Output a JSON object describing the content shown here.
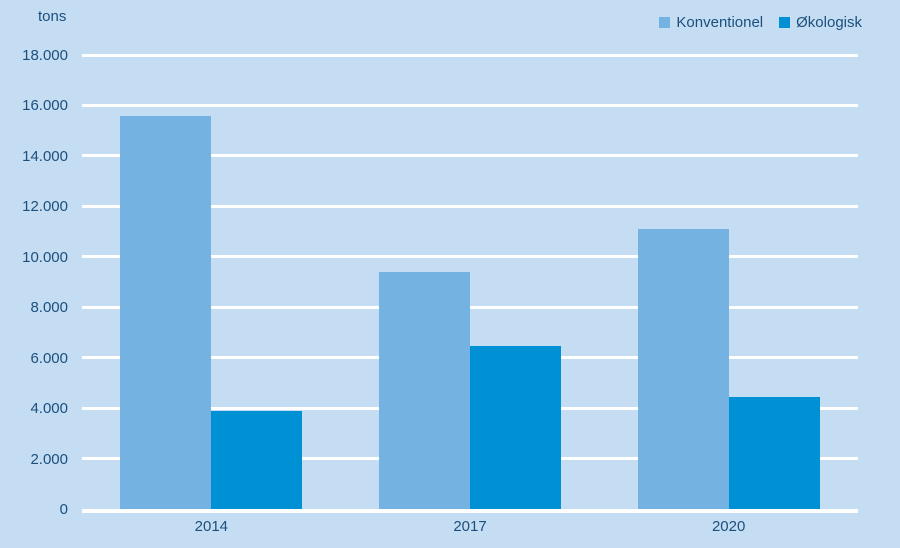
{
  "chart_data": {
    "type": "bar",
    "title": "",
    "unit_label": "tons",
    "xlabel": "",
    "ylabel": "tons",
    "categories": [
      "2014",
      "2017",
      "2020"
    ],
    "series": [
      {
        "name": "Konventionel",
        "color": "#74b2e2",
        "values": [
          15600,
          9400,
          11100
        ]
      },
      {
        "name": "Økologisk",
        "color": "#0090d4",
        "values": [
          3900,
          6450,
          4450
        ]
      }
    ],
    "yticks": [
      {
        "v": 0,
        "label": "0"
      },
      {
        "v": 2000,
        "label": "2.000"
      },
      {
        "v": 4000,
        "label": "4.000"
      },
      {
        "v": 6000,
        "label": "6.000"
      },
      {
        "v": 8000,
        "label": "8.000"
      },
      {
        "v": 10000,
        "label": "10.000"
      },
      {
        "v": 12000,
        "label": "12.000"
      },
      {
        "v": 14000,
        "label": "14.000"
      },
      {
        "v": 16000,
        "label": "16.000"
      },
      {
        "v": 18000,
        "label": "18.000"
      }
    ],
    "ylim": [
      0,
      18000
    ],
    "grid": "horizontal",
    "legend_position": "top-right",
    "colors": {
      "background": "#c5ddf2",
      "gridline": "#ffffff",
      "text": "#1b4f7e"
    }
  }
}
